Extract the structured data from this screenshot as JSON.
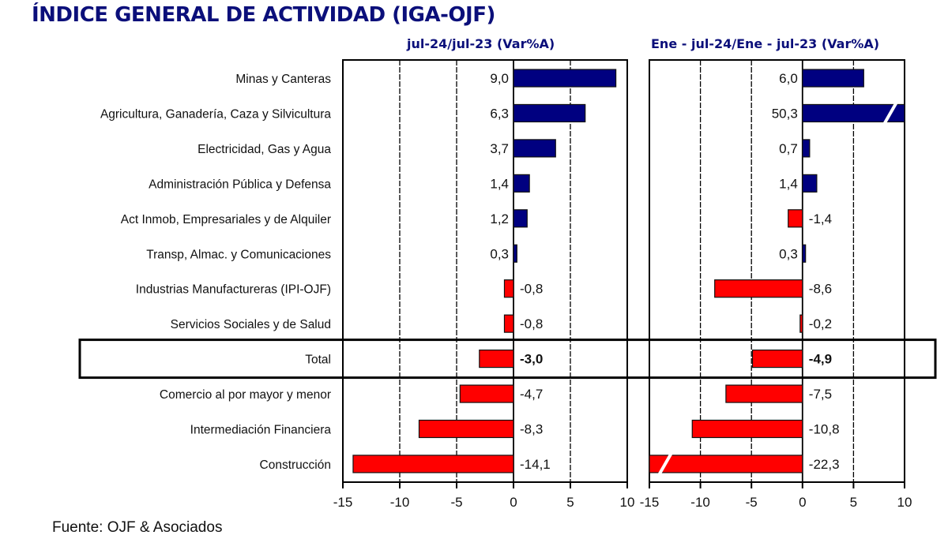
{
  "title": "ÍNDICE GENERAL DE ACTIVIDAD (IGA-OJF)",
  "source": "Fuente: OJF & Asociados",
  "colors": {
    "positive": "#000080",
    "negative": "#ff0000",
    "title": "#0b0f7a"
  },
  "chart_data": [
    {
      "type": "bar",
      "orientation": "horizontal",
      "title": "jul-24/jul-23  (Var%A)",
      "xlim": [
        -15,
        10
      ],
      "xticks": [
        -15,
        -10,
        -5,
        0,
        5,
        10
      ],
      "grid": true,
      "categories": [
        "Minas y Canteras",
        "Agricultura, Ganadería, Caza y Silvicultura",
        "Electricidad, Gas y Agua",
        "Administración Pública y Defensa",
        "Act Inmob, Empresariales y de Alquiler",
        "Transp, Almac. y Comunicaciones",
        "Industrias Manufactureras (IPI-OJF)",
        "Servicios Sociales y de Salud",
        "Total",
        "Comercio al por mayor y menor",
        "Intermediación Financiera",
        "Construcción"
      ],
      "values": [
        9.0,
        6.3,
        3.7,
        1.4,
        1.2,
        0.3,
        -0.8,
        -0.8,
        -3.0,
        -4.7,
        -8.3,
        -14.1
      ],
      "labels": [
        "9,0",
        "6,3",
        "3,7",
        "1,4",
        "1,2",
        "0,3",
        "-0,8",
        "-0,8",
        "-3,0",
        "-4,7",
        "-8,3",
        "-14,1"
      ],
      "highlight": "Total"
    },
    {
      "type": "bar",
      "orientation": "horizontal",
      "title": "Ene - jul-24/Ene - jul-23  (Var%A)",
      "xlim": [
        -15,
        10
      ],
      "xticks": [
        -15,
        -10,
        -5,
        0,
        5,
        10
      ],
      "grid": true,
      "categories": [
        "Minas y Canteras",
        "Agricultura, Ganadería, Caza y Silvicultura",
        "Electricidad, Gas y Agua",
        "Administración Pública y Defensa",
        "Act Inmob, Empresariales y de Alquiler",
        "Transp, Almac. y Comunicaciones",
        "Industrias Manufactureras (IPI-OJF)",
        "Servicios Sociales y de Salud",
        "Total",
        "Comercio al por mayor y menor",
        "Intermediación Financiera",
        "Construcción"
      ],
      "values": [
        6.0,
        50.3,
        0.7,
        1.4,
        -1.4,
        0.3,
        -8.6,
        -0.2,
        -4.9,
        -7.5,
        -10.8,
        -22.3
      ],
      "labels": [
        "6,0",
        "50,3",
        "0,7",
        "1,4",
        "-1,4",
        "0,3",
        "-8,6",
        "-0,2",
        "-4,9",
        "-7,5",
        "-10,8",
        "-22,3"
      ],
      "highlight": "Total",
      "truncated": [
        "Agricultura, Ganadería, Caza y Silvicultura",
        "Construcción"
      ]
    }
  ]
}
